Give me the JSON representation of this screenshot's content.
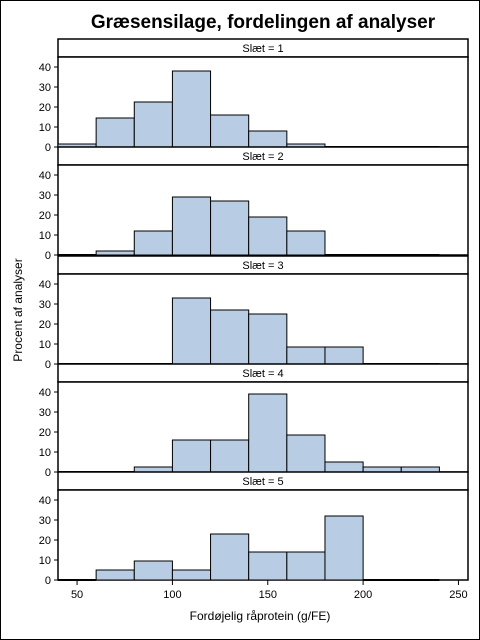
{
  "chart_data": {
    "type": "bar",
    "title": "Græsensilage, fordelingen af analyser",
    "xlabel": "Fordøjelig råprotein (g/FE)",
    "ylabel": "Procent af analyser",
    "xlim": [
      40,
      255
    ],
    "ylim": [
      0,
      45
    ],
    "xticks": [
      50,
      100,
      150,
      200,
      250
    ],
    "yticks": [
      0,
      10,
      20,
      30,
      40
    ],
    "bin_edges": [
      40,
      60,
      80,
      100,
      120,
      140,
      160,
      180,
      200,
      220,
      240
    ],
    "bar_color": "#b8cce4",
    "panels": [
      {
        "label": "Slæt = 1",
        "values": [
          1.5,
          14.5,
          22.5,
          38,
          16,
          8,
          1.5,
          0,
          0,
          0
        ]
      },
      {
        "label": "Slæt = 2",
        "values": [
          0,
          2,
          12,
          29,
          27,
          19,
          12,
          0,
          0,
          0
        ]
      },
      {
        "label": "Slæt = 3",
        "values": [
          0,
          0,
          0,
          33,
          27,
          25,
          8.5,
          8.5,
          0,
          0
        ]
      },
      {
        "label": "Slæt = 4",
        "values": [
          0,
          0,
          2.5,
          16,
          16,
          39,
          18.5,
          5,
          2.5,
          2.5
        ]
      },
      {
        "label": "Slæt = 5",
        "values": [
          0,
          5,
          9.5,
          5,
          23,
          14,
          14,
          32,
          0,
          0
        ]
      }
    ]
  }
}
